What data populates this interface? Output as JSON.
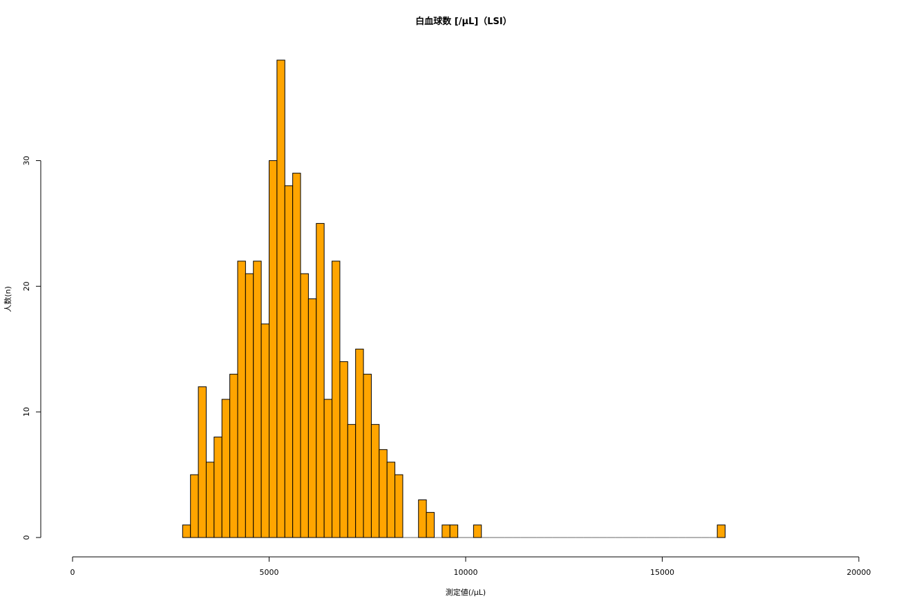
{
  "chart_data": {
    "type": "bar",
    "subtype": "histogram",
    "title": "白血球数 [/µL]（LSI）",
    "xlabel": "測定値(/µL)",
    "ylabel": "人数(n)",
    "xlim": [
      0,
      20000
    ],
    "ylim": [
      0,
      38
    ],
    "x_ticks": [
      "0",
      "5000",
      "10000",
      "15000",
      "20000"
    ],
    "y_ticks": [
      "0",
      "10",
      "20",
      "30"
    ],
    "x_tick_values": [
      0,
      5000,
      10000,
      15000,
      20000
    ],
    "y_tick_values": [
      0,
      10,
      20,
      30
    ],
    "bin_width": 200,
    "bin_start": 2800,
    "bin_end": 16600,
    "bar_color": "#FFA500",
    "bar_edge_color": "#000000",
    "values": [
      1,
      5,
      12,
      6,
      8,
      11,
      13,
      22,
      21,
      22,
      17,
      30,
      38,
      28,
      29,
      21,
      19,
      25,
      11,
      22,
      14,
      9,
      15,
      13,
      9,
      7,
      6,
      5,
      0,
      0,
      3,
      2,
      0,
      1,
      1,
      0,
      0,
      1,
      0,
      0,
      0,
      0,
      0,
      0,
      0,
      0,
      0,
      0,
      0,
      0,
      0,
      0,
      0,
      0,
      0,
      0,
      0,
      0,
      0,
      0,
      0,
      0,
      0,
      0,
      0,
      0,
      0,
      0,
      1
    ],
    "grid": false,
    "legend": "none"
  }
}
